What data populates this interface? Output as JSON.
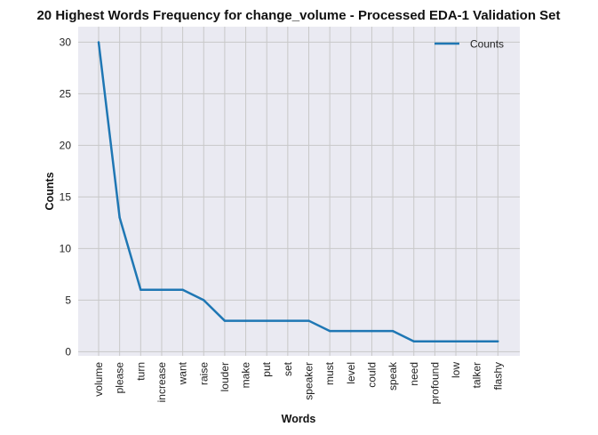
{
  "chart_data": {
    "type": "line",
    "title": "20 Highest Words Frequency for change_volume - Processed EDA-1 Validation Set",
    "xlabel": "Words",
    "ylabel": "Counts",
    "categories": [
      "volume",
      "please",
      "turn",
      "increase",
      "want",
      "raise",
      "louder",
      "make",
      "put",
      "set",
      "speaker",
      "must",
      "level",
      "could",
      "speak",
      "need",
      "profound",
      "low",
      "talker",
      "flashy"
    ],
    "series": [
      {
        "name": "Counts",
        "values": [
          30,
          13,
          6,
          6,
          6,
          5,
          3,
          3,
          3,
          3,
          3,
          2,
          2,
          2,
          2,
          1,
          1,
          1,
          1,
          1
        ],
        "color": "#1f77b4"
      }
    ],
    "yticks": [
      "0",
      "5",
      "10",
      "15",
      "20",
      "25",
      "30"
    ],
    "ylim": [
      -0.4,
      31.5
    ],
    "grid": true,
    "legend_position": "top-right",
    "background_color": "#eaeaf2",
    "grid_color": "#c8c8c8"
  }
}
